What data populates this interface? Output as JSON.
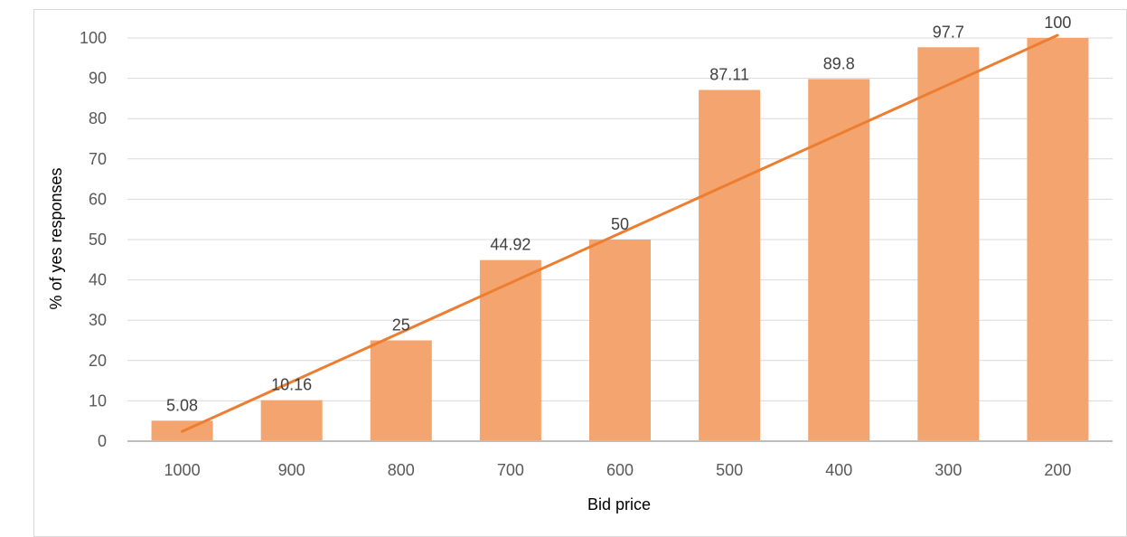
{
  "chart_data": {
    "type": "bar",
    "title": "",
    "xlabel": "Bid price",
    "ylabel": "% of yes responses",
    "categories": [
      "1000",
      "900",
      "800",
      "700",
      "600",
      "500",
      "400",
      "300",
      "200"
    ],
    "values": [
      5.08,
      10.16,
      25,
      44.92,
      50,
      87.11,
      89.8,
      97.7,
      100
    ],
    "data_labels": [
      "5.08",
      "10.16",
      "25",
      "44.92",
      "50",
      "87.11",
      "89.8",
      "97.7",
      "100"
    ],
    "ylim": [
      0,
      100
    ],
    "yticks": [
      "0",
      "10",
      "20",
      "30",
      "40",
      "50",
      "60",
      "70",
      "80",
      "90",
      "100"
    ],
    "grid": true,
    "legend": "none",
    "trendline": {
      "type": "linear",
      "start_value": 2.4,
      "end_value": 100.7
    },
    "colors": {
      "bar": "#F4A46E",
      "trendline": "#ED7D31",
      "grid": "#D9D9D9",
      "axis": "#BFBFBF",
      "frame": "#D9D9D9"
    }
  }
}
